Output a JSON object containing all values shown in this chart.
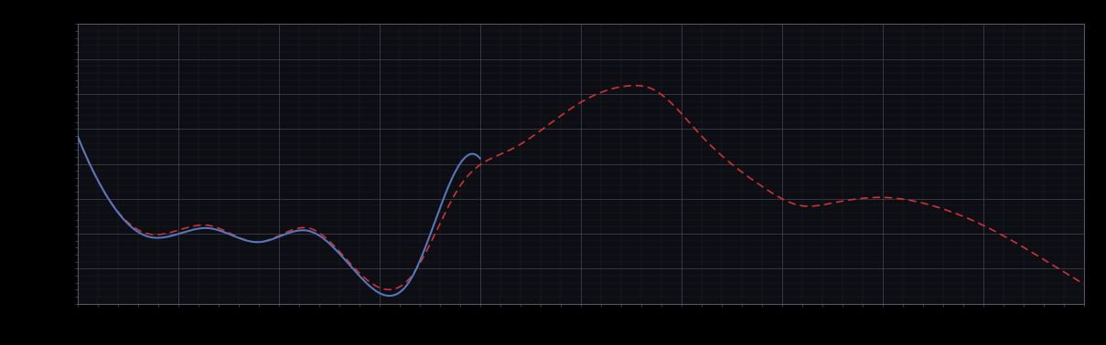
{
  "background_color": "#000000",
  "plot_bg_color": "#0d0d14",
  "grid_color": "#4a4a5a",
  "line1_color": "#5577bb",
  "line2_color": "#cc3333",
  "figsize": [
    12.09,
    3.78
  ],
  "dpi": 100,
  "xlim": [
    0,
    100
  ],
  "ylim": [
    0,
    100
  ],
  "grid_alpha": 0.8,
  "grid_linewidth": 0.6,
  "spine_color": "#555566",
  "tick_color": "#555566"
}
